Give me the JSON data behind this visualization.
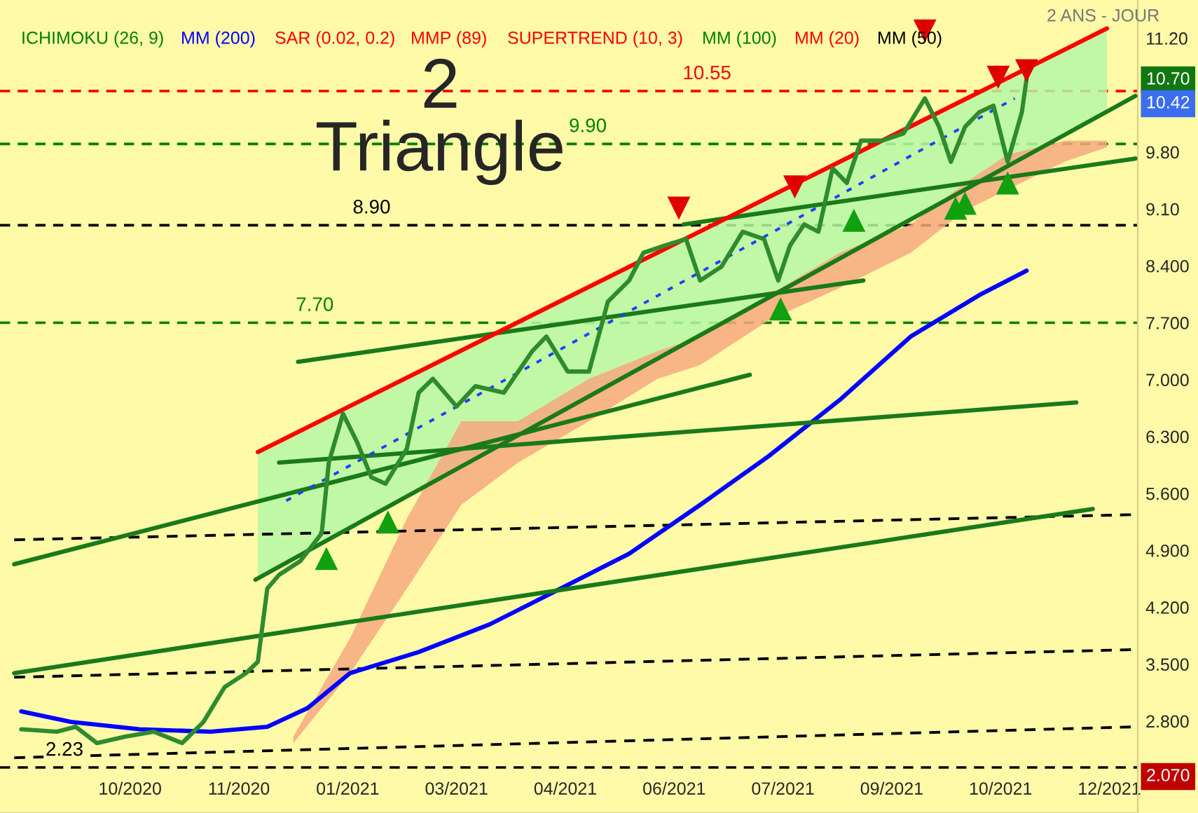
{
  "chart_data": {
    "type": "line",
    "title": "2\nTriangle",
    "xlim": [
      "2020-08-21",
      "2021-12-15"
    ],
    "ylim": [
      1.67,
      11.67
    ],
    "xticks": [
      {
        "value": "2020-10-15",
        "label": "10/2020"
      },
      {
        "value": "2020-11-30",
        "label": "11/2020"
      },
      {
        "value": "2021-01-15",
        "label": "01/2021"
      },
      {
        "value": "2021-03-02",
        "label": "03/2021"
      },
      {
        "value": "2021-04-17",
        "label": "04/2021"
      },
      {
        "value": "2021-06-02",
        "label": "06/2021"
      },
      {
        "value": "2021-07-18",
        "label": "07/2021"
      },
      {
        "value": "2021-09-02",
        "label": "09/2021"
      },
      {
        "value": "2021-10-18",
        "label": "10/2021"
      },
      {
        "value": "2021-12-03",
        "label": "12/2021"
      }
    ],
    "yticks": [
      {
        "value": 2.8,
        "label": "2.800"
      },
      {
        "value": 3.5,
        "label": "3.500"
      },
      {
        "value": 4.2,
        "label": "4.200"
      },
      {
        "value": 4.9,
        "label": "4.900"
      },
      {
        "value": 5.6,
        "label": "5.600"
      },
      {
        "value": 6.3,
        "label": "6.300"
      },
      {
        "value": 7.0,
        "label": "7.000"
      },
      {
        "value": 7.7,
        "label": "7.700"
      },
      {
        "value": 8.4,
        "label": "8.400"
      },
      {
        "value": 9.1,
        "label": "9.10"
      },
      {
        "value": 9.8,
        "label": "9.80"
      },
      {
        "value": 11.2,
        "label": "11.20"
      }
    ],
    "annotations": [
      "ICHIMOKU (26, 9)",
      "MM (200)",
      "SAR (0.02, 0.2)",
      "MMP (89)",
      "SUPERTREND (10, 3)",
      "MM (100)",
      "MM (20)",
      "MM (50)",
      "2 ANS - JOUR",
      "10.70",
      "10.42",
      "2.070"
    ],
    "ref_lines": [
      {
        "axis": "y",
        "value": 10.55,
        "label": "10.55",
        "color": "#ff0000",
        "line_style": "dashed"
      },
      {
        "axis": "y",
        "value": 9.9,
        "label": "9.90",
        "color": "#008000",
        "line_style": "dashed"
      },
      {
        "axis": "y",
        "value": 8.9,
        "label": "8.90",
        "color": "#000000",
        "line_style": "dashed"
      },
      {
        "axis": "y",
        "value": 7.7,
        "label": "7.70",
        "color": "#008000",
        "line_style": "dashed"
      },
      {
        "axis": "y",
        "value": 2.23,
        "label": "2.23",
        "color": "#000000",
        "line_style": "dashed"
      }
    ],
    "series": [
      {
        "type": "area",
        "color": "#b6f7a4",
        "x": [
          "2020-12-08",
          "2021-12-02"
        ],
        "values": [
          null,
          null
        ],
        "upper": [
          6.11,
          11.32
        ],
        "lower": [
          4.55,
          10.3
        ]
      },
      {
        "type": "area",
        "color": "#f7a880",
        "x": [
          "2020-12-23",
          "2021-01-16",
          "2021-02-09",
          "2021-03-04",
          "2021-03-28",
          "2021-04-27",
          "2021-05-26",
          "2021-06-13",
          "2021-07-12",
          "2021-08-11",
          "2021-09-10",
          "2021-10-03",
          "2021-10-21",
          "2021-11-14",
          "2021-12-02"
        ],
        "values": [
          null,
          null,
          null,
          null,
          null,
          null,
          null,
          null,
          null,
          null,
          null,
          null,
          null,
          null,
          null
        ],
        "upper": [
          2.61,
          3.82,
          5.29,
          6.49,
          6.49,
          7.01,
          7.35,
          7.53,
          8.04,
          8.56,
          8.91,
          9.42,
          9.77,
          9.94,
          9.94
        ],
        "lower": [
          2.53,
          3.39,
          4.43,
          5.46,
          5.98,
          6.49,
          7.01,
          7.18,
          7.73,
          8.13,
          8.56,
          9.08,
          9.34,
          9.68,
          9.86
        ]
      },
      {
        "color": "#000000",
        "line_style": "dashed",
        "x": [
          "2020-08-27",
          "2021-12-14"
        ],
        "values": [
          5.03,
          5.34
        ]
      },
      {
        "color": "#000000",
        "line_style": "dashed",
        "x": [
          "2020-08-27",
          "2021-12-14"
        ],
        "values": [
          3.34,
          3.68
        ]
      },
      {
        "color": "#000000",
        "line_style": "dashed",
        "x": [
          "2020-08-27",
          "2021-12-14"
        ],
        "values": [
          2.35,
          2.73
        ]
      },
      {
        "color": "#0000ff",
        "x": [
          "2020-08-30",
          "2020-09-20",
          "2020-10-19",
          "2020-11-18",
          "2020-12-12",
          "2020-12-29",
          "2021-01-16",
          "2021-02-14",
          "2021-03-16",
          "2021-04-15",
          "2021-05-14",
          "2021-06-13",
          "2021-07-12",
          "2021-08-11",
          "2021-09-10",
          "2021-10-09",
          "2021-10-29"
        ],
        "values": [
          2.92,
          2.79,
          2.7,
          2.67,
          2.73,
          2.96,
          3.39,
          3.65,
          3.99,
          4.43,
          4.86,
          5.46,
          6.06,
          6.75,
          7.53,
          8.04,
          8.34
        ]
      },
      {
        "color": "#1a7a1a",
        "x": [
          "2020-08-27",
          "2021-07-04"
        ],
        "values": [
          4.73,
          7.06
        ]
      },
      {
        "color": "#1a7a1a",
        "x": [
          "2020-08-27",
          "2021-11-26"
        ],
        "values": [
          3.39,
          5.41
        ]
      },
      {
        "color": "#1a7a1a",
        "x": [
          "2020-12-07",
          "2021-12-14"
        ],
        "values": [
          4.54,
          10.49
        ]
      },
      {
        "color": "#1a7a1a",
        "x": [
          "2020-12-17",
          "2021-11-19"
        ],
        "values": [
          5.98,
          6.72
        ]
      },
      {
        "color": "#1a7a1a",
        "x": [
          "2020-12-25",
          "2021-08-21"
        ],
        "values": [
          7.22,
          8.22
        ]
      },
      {
        "color": "#1a7a1a",
        "x": [
          "2021-06-06",
          "2021-12-14"
        ],
        "values": [
          8.91,
          9.72
        ]
      },
      {
        "color": "#ff0000",
        "x": [
          "2020-12-08",
          "2021-12-02"
        ],
        "values": [
          6.11,
          11.32
        ]
      },
      {
        "color": "#2040ff",
        "line_style": "dotted",
        "x": [
          "2020-12-20",
          "2021-10-24"
        ],
        "values": [
          5.51,
          10.46
        ]
      },
      {
        "color": "#2e8b2e",
        "x": [
          "2020-08-30",
          "2020-09-14",
          "2020-09-22",
          "2020-10-01",
          "2020-10-13",
          "2020-10-25",
          "2020-11-06",
          "2020-11-15",
          "2020-11-24",
          "2020-12-03",
          "2020-12-08",
          "2020-12-12",
          "2020-12-17",
          "2020-12-26",
          "2021-01-04",
          "2021-01-07",
          "2021-01-13",
          "2021-01-19",
          "2021-01-25",
          "2021-01-31",
          "2021-02-09",
          "2021-02-14",
          "2021-02-20",
          "2021-03-02",
          "2021-03-10",
          "2021-03-22",
          "2021-04-03",
          "2021-04-09",
          "2021-04-18",
          "2021-04-27",
          "2021-05-05",
          "2021-05-14",
          "2021-05-20",
          "2021-05-29",
          "2021-06-07",
          "2021-06-13",
          "2021-06-22",
          "2021-07-01",
          "2021-07-10",
          "2021-07-16",
          "2021-07-21",
          "2021-07-27",
          "2021-08-02",
          "2021-08-08",
          "2021-08-14",
          "2021-08-20",
          "2021-08-29",
          "2021-09-07",
          "2021-09-16",
          "2021-09-22",
          "2021-09-27",
          "2021-10-03",
          "2021-10-09",
          "2021-10-15",
          "2021-10-21",
          "2021-10-27",
          "2021-10-29"
        ],
        "values": [
          2.7,
          2.67,
          2.73,
          2.53,
          2.61,
          2.67,
          2.53,
          2.79,
          3.22,
          3.39,
          3.53,
          4.43,
          4.6,
          4.77,
          5.11,
          5.98,
          6.58,
          6.23,
          5.8,
          5.72,
          6.15,
          6.84,
          7.01,
          6.67,
          6.92,
          6.84,
          7.35,
          7.53,
          7.1,
          7.1,
          7.96,
          8.22,
          8.56,
          8.65,
          8.73,
          8.22,
          8.39,
          8.82,
          8.73,
          8.22,
          8.65,
          8.91,
          8.82,
          9.6,
          9.42,
          9.94,
          9.94,
          10.03,
          10.46,
          10.11,
          9.68,
          10.11,
          10.29,
          10.37,
          9.68,
          10.29,
          10.7
        ]
      },
      {
        "type": "scatter",
        "color": "#e00000",
        "marker": "triangle-down",
        "x": [
          "2021-06-04",
          "2021-07-23",
          "2021-09-16",
          "2021-10-17",
          "2021-10-29"
        ],
        "values": [
          9.11,
          9.37,
          11.29,
          10.72,
          10.8
        ]
      },
      {
        "type": "scatter",
        "color": "#10a010",
        "marker": "triangle",
        "x": [
          "2021-01-06",
          "2021-02-01",
          "2021-07-17",
          "2021-08-17",
          "2021-09-29",
          "2021-10-03",
          "2021-10-21"
        ],
        "values": [
          4.8,
          5.25,
          7.87,
          8.96,
          9.11,
          9.17,
          9.42
        ]
      }
    ]
  }
}
